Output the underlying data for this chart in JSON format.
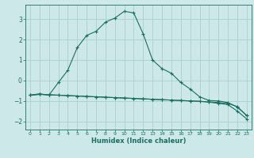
{
  "xlabel": "Humidex (Indice chaleur)",
  "bg_color": "#cce8e8",
  "grid_color": "#aad0d0",
  "line_color": "#1a6e60",
  "xlim": [
    -0.5,
    23.5
  ],
  "ylim": [
    -2.4,
    3.7
  ],
  "xticks": [
    0,
    1,
    2,
    3,
    4,
    5,
    6,
    7,
    8,
    9,
    10,
    11,
    12,
    13,
    14,
    15,
    16,
    17,
    18,
    19,
    20,
    21,
    22,
    23
  ],
  "yticks": [
    -2,
    -1,
    0,
    1,
    2,
    3
  ],
  "curve1_x": [
    0,
    1,
    2,
    3,
    4,
    5,
    6,
    7,
    8,
    9,
    10,
    11,
    12,
    13,
    14,
    15,
    16,
    17,
    18,
    19,
    20,
    21,
    22,
    23
  ],
  "curve1_y": [
    -0.72,
    -0.65,
    -0.72,
    -0.1,
    0.5,
    1.6,
    2.2,
    2.4,
    2.85,
    3.05,
    3.38,
    3.3,
    2.28,
    1.0,
    0.58,
    0.35,
    -0.1,
    -0.42,
    -0.8,
    -0.98,
    -1.0,
    -1.08,
    -1.3,
    -1.72
  ],
  "curve2_x": [
    0,
    1,
    2,
    3,
    4,
    5,
    6,
    7,
    8,
    9,
    10,
    11,
    12,
    13,
    14,
    15,
    16,
    17,
    18,
    19,
    20,
    21,
    22,
    23
  ],
  "curve2_y": [
    -0.72,
    -0.68,
    -0.7,
    -0.72,
    -0.74,
    -0.76,
    -0.78,
    -0.8,
    -0.82,
    -0.84,
    -0.86,
    -0.88,
    -0.9,
    -0.92,
    -0.94,
    -0.96,
    -0.98,
    -1.0,
    -1.02,
    -1.05,
    -1.08,
    -1.12,
    -1.28,
    -1.72
  ],
  "curve3_x": [
    0,
    1,
    2,
    3,
    4,
    5,
    6,
    7,
    8,
    9,
    10,
    11,
    12,
    13,
    14,
    15,
    16,
    17,
    18,
    19,
    20,
    21,
    22,
    23
  ],
  "curve3_y": [
    -0.72,
    -0.68,
    -0.7,
    -0.72,
    -0.74,
    -0.76,
    -0.78,
    -0.8,
    -0.82,
    -0.84,
    -0.86,
    -0.88,
    -0.9,
    -0.92,
    -0.94,
    -0.96,
    -0.98,
    -1.0,
    -1.02,
    -1.06,
    -1.12,
    -1.18,
    -1.5,
    -1.88
  ]
}
